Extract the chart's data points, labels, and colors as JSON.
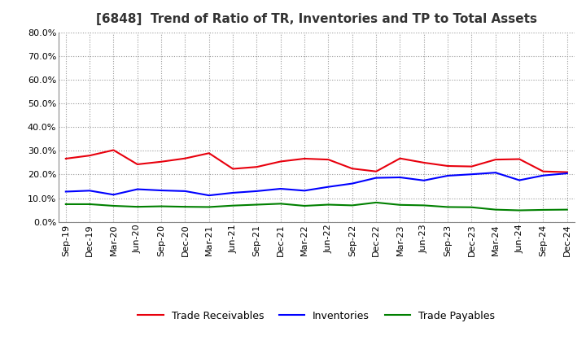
{
  "title": "[6848]  Trend of Ratio of TR, Inventories and TP to Total Assets",
  "x_labels": [
    "Sep-19",
    "Dec-19",
    "Mar-20",
    "Jun-20",
    "Sep-20",
    "Dec-20",
    "Mar-21",
    "Jun-21",
    "Sep-21",
    "Dec-21",
    "Mar-22",
    "Jun-22",
    "Sep-22",
    "Dec-22",
    "Mar-23",
    "Jun-23",
    "Sep-23",
    "Dec-23",
    "Mar-24",
    "Jun-24",
    "Sep-24",
    "Dec-24"
  ],
  "trade_receivables": [
    0.267,
    0.28,
    0.303,
    0.243,
    0.254,
    0.268,
    0.29,
    0.224,
    0.232,
    0.255,
    0.267,
    0.263,
    0.225,
    0.213,
    0.268,
    0.25,
    0.236,
    0.234,
    0.263,
    0.265,
    0.213,
    0.21
  ],
  "inventories": [
    0.128,
    0.132,
    0.115,
    0.138,
    0.133,
    0.13,
    0.112,
    0.123,
    0.13,
    0.14,
    0.132,
    0.148,
    0.162,
    0.186,
    0.188,
    0.175,
    0.195,
    0.201,
    0.208,
    0.176,
    0.196,
    0.205
  ],
  "trade_payables": [
    0.075,
    0.075,
    0.068,
    0.064,
    0.066,
    0.064,
    0.063,
    0.069,
    0.073,
    0.077,
    0.068,
    0.073,
    0.07,
    0.082,
    0.072,
    0.07,
    0.063,
    0.062,
    0.052,
    0.049,
    0.051,
    0.052
  ],
  "color_tr": "#e8000d",
  "color_inv": "#0000ff",
  "color_tp": "#008000",
  "ylim": [
    0.0,
    0.8
  ],
  "yticks": [
    0.0,
    0.1,
    0.2,
    0.3,
    0.4,
    0.5,
    0.6,
    0.7,
    0.8
  ],
  "background_color": "#ffffff",
  "plot_bg_color": "#ffffff",
  "grid_color": "#999999",
  "legend_labels": [
    "Trade Receivables",
    "Inventories",
    "Trade Payables"
  ],
  "title_fontsize": 11,
  "tick_fontsize": 8,
  "legend_fontsize": 9,
  "linewidth": 1.5
}
